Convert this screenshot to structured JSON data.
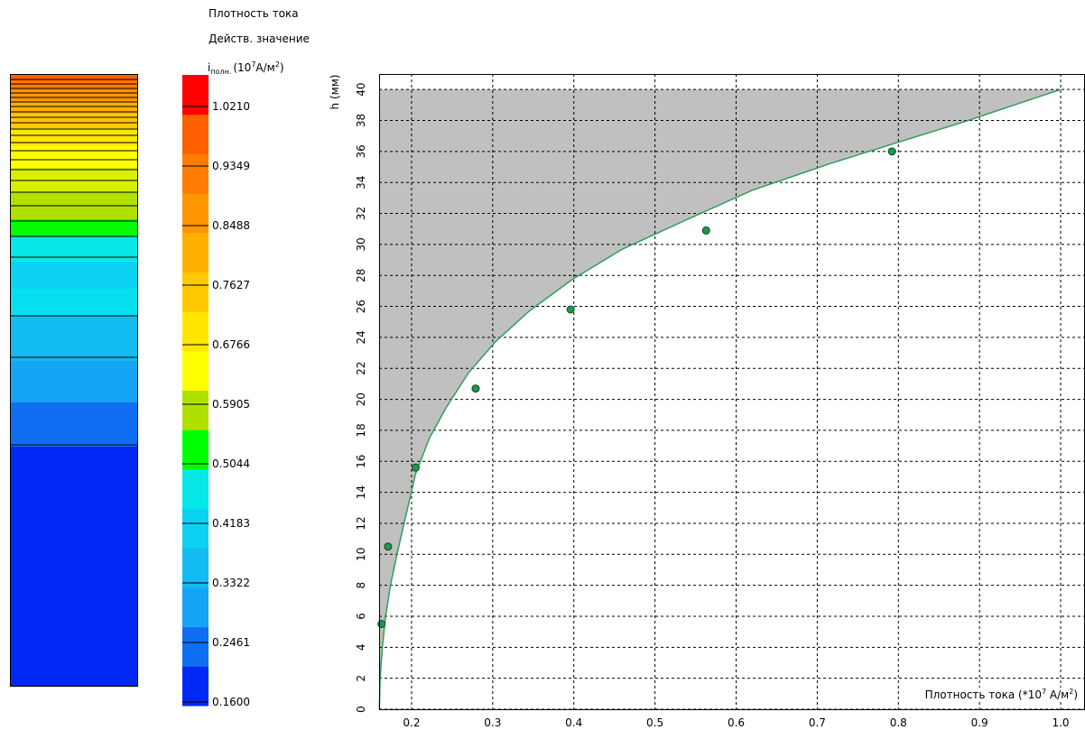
{
  "legend": {
    "title_line1": "Плотность тока",
    "title_line2": "Действ. значение",
    "var_symbol": "i",
    "var_subscript": "полн.",
    "unit_pre": "(10",
    "unit_exp": "7",
    "unit_mid": "A/м",
    "unit_sq": "2",
    "unit_post": ")",
    "tick_labels": [
      "1.0210",
      "0.9349",
      "0.8488",
      "0.7627",
      "0.6766",
      "0.5905",
      "0.5044",
      "0.4183",
      "0.3322",
      "0.2461",
      "0.1600"
    ],
    "color_bands": [
      "#0028f4",
      "#0f6ef4",
      "#16a4f4",
      "#12bbf2",
      "#0bd2f2",
      "#06e8e8",
      "#00ff00",
      "#b0e000",
      "#ffff00",
      "#ffe600",
      "#ffc800",
      "#ffb000",
      "#ff9600",
      "#ff7c00",
      "#ff6000",
      "#ff0000"
    ]
  },
  "colors": {
    "area_fill": "#c0c0c0",
    "curve": "#2e9f5a",
    "marker_fill": "#229650",
    "marker_stroke": "#0a4a24",
    "grid": "#000000"
  },
  "chart_data": {
    "type": "line",
    "title": "",
    "xlabel_pre": "Плотность тока (*10",
    "xlabel_exp": "7",
    "xlabel_mid": " A/м",
    "xlabel_sq": "2",
    "xlabel_post": ")",
    "ylabel": "h (мм)",
    "xlim": [
      0.16,
      1.03
    ],
    "ylim": [
      0,
      41
    ],
    "x_ticks": [
      0.2,
      0.3,
      0.4,
      0.5,
      0.6,
      0.7,
      0.8,
      0.9,
      1.0
    ],
    "x_tick_labels": [
      "0.2",
      "0.3",
      "0.4",
      "0.5",
      "0.6",
      "0.7",
      "0.8",
      "0.9",
      "1.0"
    ],
    "y_ticks": [
      0,
      2,
      4,
      6,
      8,
      10,
      12,
      14,
      16,
      18,
      20,
      22,
      24,
      26,
      28,
      30,
      32,
      34,
      36,
      38,
      40
    ],
    "y_tick_labels": [
      "0",
      "2",
      "4",
      "6",
      "8",
      "10",
      "12",
      "14",
      "16",
      "18",
      "20",
      "22",
      "24",
      "26",
      "28",
      "30",
      "32",
      "34",
      "36",
      "38",
      "40"
    ],
    "grid": true,
    "series": [
      {
        "curve_x": [
          0.1603,
          0.1612,
          0.164,
          0.168,
          0.174,
          0.182,
          0.193,
          0.205,
          0.222,
          0.243,
          0.27,
          0.303,
          0.345,
          0.397,
          0.46,
          0.535,
          0.62,
          0.715,
          0.8,
          0.88,
          0.96,
          1.0
        ],
        "curve_y": [
          0,
          2,
          4,
          6,
          8,
          10,
          12.5,
          15.2,
          17.5,
          19.5,
          21.7,
          23.7,
          25.7,
          27.7,
          29.7,
          31.5,
          33.5,
          35.2,
          36.6,
          37.9,
          39.3,
          40
        ],
        "marker_x": [
          0.163,
          0.171,
          0.205,
          0.279,
          0.396,
          0.563,
          0.792
        ],
        "marker_y": [
          5.5,
          10.5,
          15.6,
          20.7,
          25.8,
          30.9,
          36.0
        ]
      }
    ],
    "shaded_region": "between curve and h = 40"
  }
}
